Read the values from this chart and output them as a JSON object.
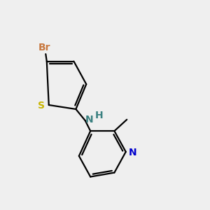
{
  "background_color": "#efefef",
  "bond_color": "#000000",
  "bond_width": 1.6,
  "atom_labels": {
    "Br": {
      "color": "#c87941",
      "fontsize": 10,
      "fontweight": "bold"
    },
    "S": {
      "color": "#c8b400",
      "fontsize": 10,
      "fontweight": "bold"
    },
    "N": {
      "color": "#0000cc",
      "fontsize": 10,
      "fontweight": "bold"
    },
    "NH": {
      "color": "#3a8080",
      "fontsize": 10,
      "fontweight": "bold"
    },
    "H": {
      "color": "#3a8080",
      "fontsize": 10,
      "fontweight": "bold"
    }
  },
  "figsize": [
    3.0,
    3.0
  ],
  "dpi": 100,
  "xlim": [
    0,
    10
  ],
  "ylim": [
    0,
    10
  ]
}
